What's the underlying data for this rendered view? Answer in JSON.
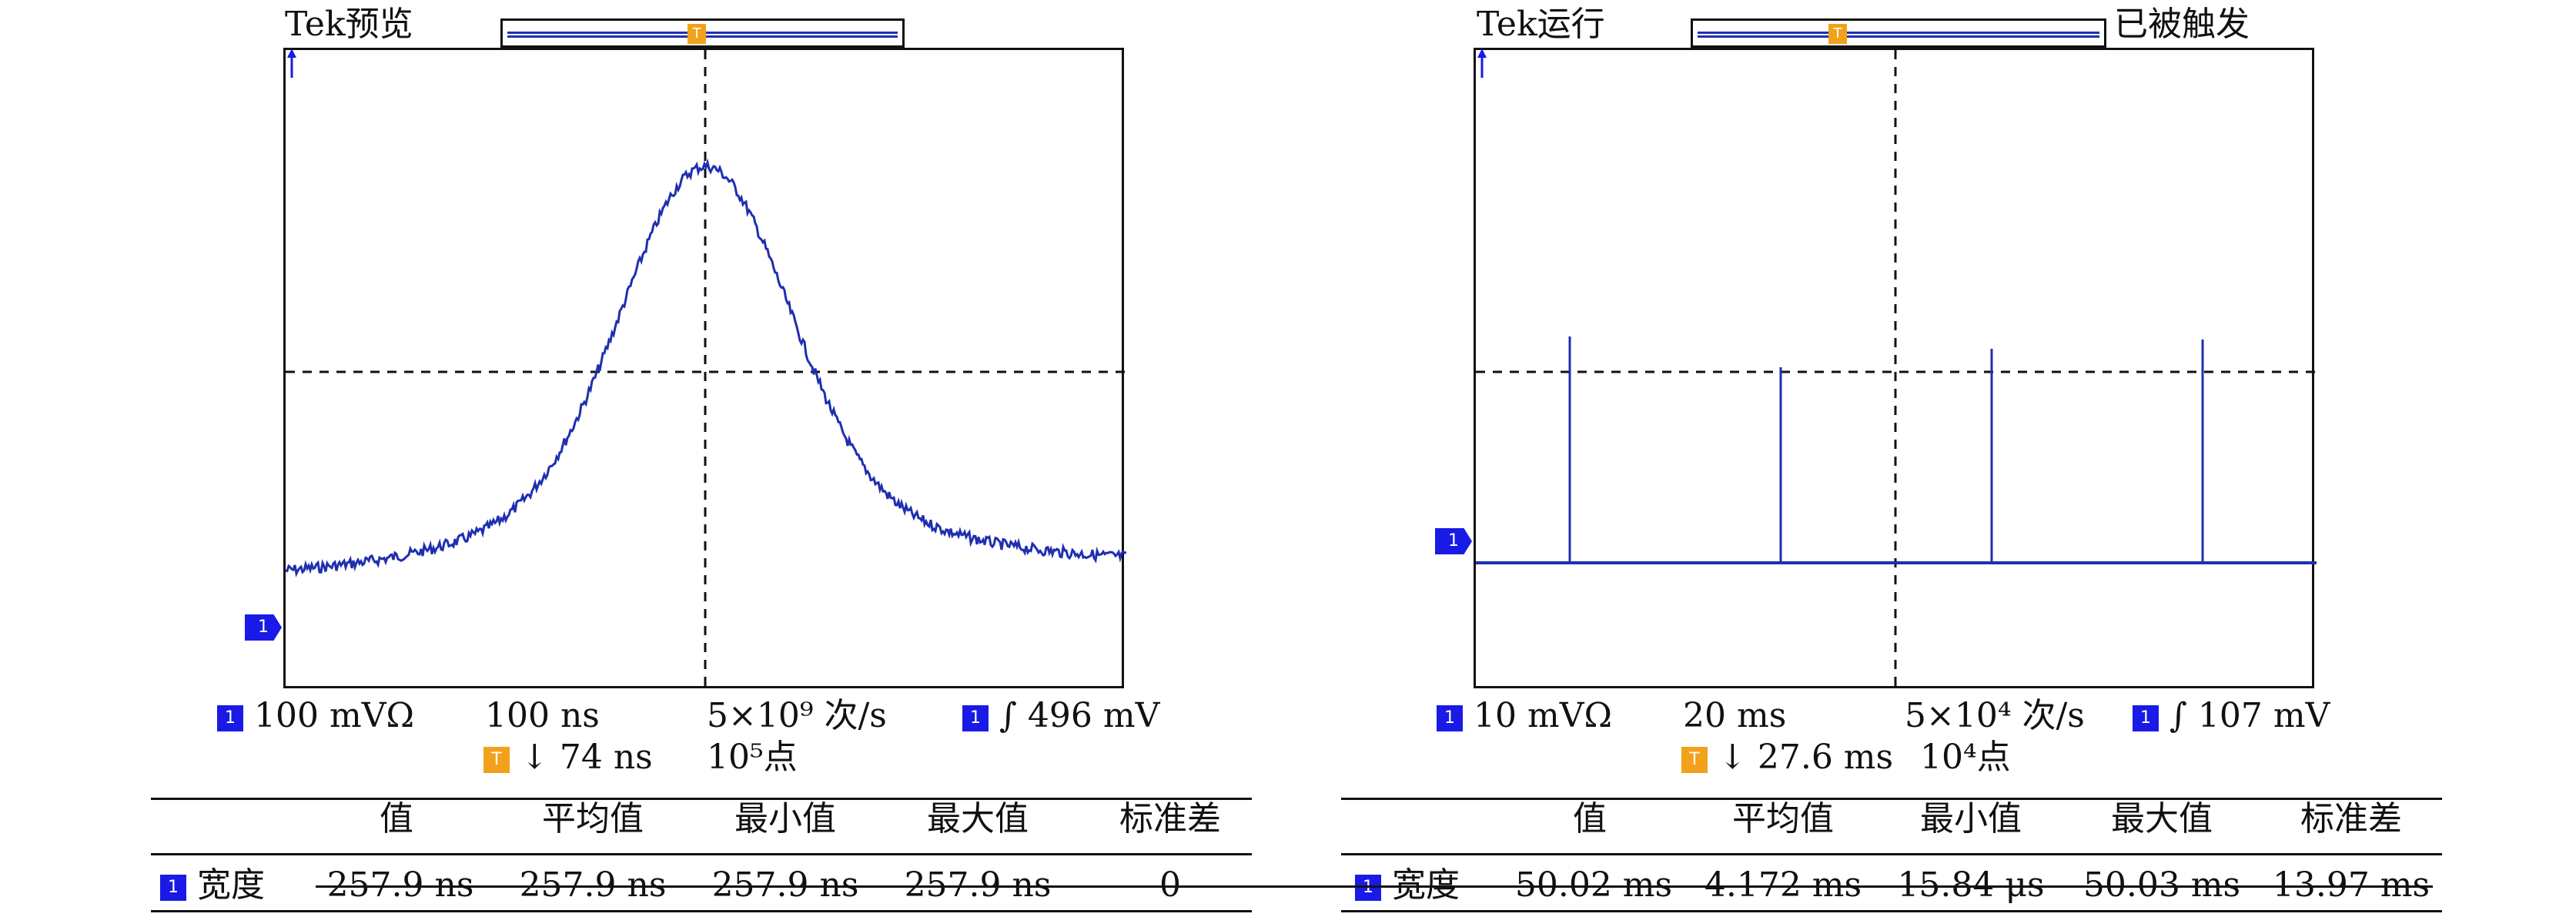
{
  "left": {
    "title": "Tek预览",
    "trigger_marker": "T",
    "ch_marker": "1",
    "stats": {
      "ch1_scale": "100 mVΩ",
      "timebase": "100 ns",
      "sample_rate": "5×10⁹ 次/s",
      "trigger_level": "∫ 496 mV",
      "trigger_pos": "↓ 74 ns",
      "record_length": "10⁵点"
    },
    "table": {
      "headers": [
        "值",
        "平均值",
        "最小值",
        "最大值",
        "标准差"
      ],
      "row_label": "宽度",
      "values": [
        "257.9 ns",
        "257.9 ns",
        "257.9 ns",
        "257.9 ns",
        "0"
      ]
    }
  },
  "right": {
    "title": "Tek运行",
    "status": "已被触发",
    "trigger_marker": "T",
    "ch_marker": "1",
    "stats": {
      "ch1_scale": "10 mVΩ",
      "timebase": "20 ms",
      "sample_rate": "5×10⁴ 次/s",
      "trigger_level": "∫ 107 mV",
      "trigger_pos": "↓ 27.6 ms",
      "record_length": "10⁴点"
    },
    "table": {
      "headers": [
        "值",
        "平均值",
        "最小值",
        "最大值",
        "标准差"
      ],
      "row_label": "宽度",
      "values": [
        "50.02 ms",
        "4.172 ms",
        "15.84 μs",
        "50.03 ms",
        "13.97 ms"
      ]
    }
  },
  "colors": {
    "trace": "#1f2fb0",
    "channel": "#1a1ae6",
    "trigger": "#f2a21a"
  }
}
